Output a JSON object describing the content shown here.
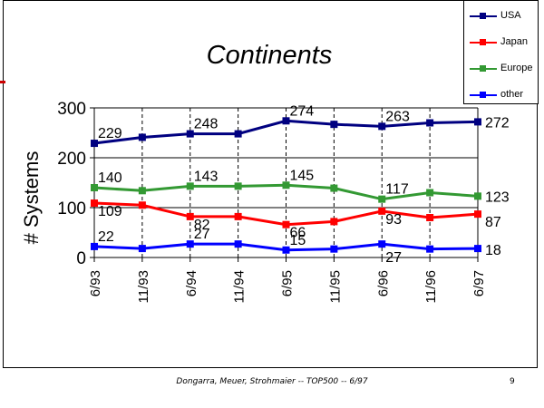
{
  "chart_data": {
    "type": "line",
    "title": "Continents",
    "ylabel": "# Systems",
    "xlabel": "",
    "categories": [
      "6/93",
      "11/93",
      "6/94",
      "11/94",
      "6/95",
      "11/95",
      "6/96",
      "11/96",
      "6/97"
    ],
    "ylim": [
      0,
      300
    ],
    "yticks": [
      "0",
      "100",
      "200",
      "300"
    ],
    "grid": "vertical dashed",
    "legend_position": "top-right",
    "series": [
      {
        "name": "USA",
        "color": "#000080",
        "values": [
          229,
          241,
          248,
          248,
          274,
          267,
          263,
          270,
          272
        ]
      },
      {
        "name": "Japan",
        "color": "#ff0000",
        "values": [
          109,
          105,
          82,
          82,
          66,
          72,
          93,
          80,
          87
        ]
      },
      {
        "name": "Europe",
        "color": "#339933",
        "values": [
          140,
          134,
          143,
          143,
          145,
          139,
          117,
          130,
          123
        ]
      },
      {
        "name": "other",
        "color": "#0000ff",
        "values": [
          22,
          18,
          27,
          27,
          15,
          17,
          27,
          17,
          18
        ]
      }
    ],
    "data_labels": [
      {
        "series": 0,
        "index": 0,
        "text": "229"
      },
      {
        "series": 0,
        "index": 2,
        "text": "248"
      },
      {
        "series": 0,
        "index": 4,
        "text": "274"
      },
      {
        "series": 0,
        "index": 6,
        "text": "263"
      },
      {
        "series": 0,
        "index": 8,
        "text": "272"
      },
      {
        "series": 2,
        "index": 0,
        "text": "140"
      },
      {
        "series": 2,
        "index": 2,
        "text": "143"
      },
      {
        "series": 2,
        "index": 4,
        "text": "145"
      },
      {
        "series": 2,
        "index": 6,
        "text": "117"
      },
      {
        "series": 2,
        "index": 8,
        "text": "123"
      },
      {
        "series": 1,
        "index": 0,
        "text": "109"
      },
      {
        "series": 1,
        "index": 2,
        "text": "82"
      },
      {
        "series": 1,
        "index": 4,
        "text": "66"
      },
      {
        "series": 1,
        "index": 6,
        "text": "93"
      },
      {
        "series": 1,
        "index": 8,
        "text": "87"
      },
      {
        "series": 3,
        "index": 0,
        "text": "22"
      },
      {
        "series": 3,
        "index": 2,
        "text": "27"
      },
      {
        "series": 3,
        "index": 4,
        "text": "15"
      },
      {
        "series": 3,
        "index": 6,
        "text": "27"
      },
      {
        "series": 3,
        "index": 8,
        "text": "18"
      }
    ]
  },
  "footer": {
    "text": "Dongarra, Meuer, Strohmaier -- TOP500 -- 6/97",
    "page_number": "9"
  }
}
